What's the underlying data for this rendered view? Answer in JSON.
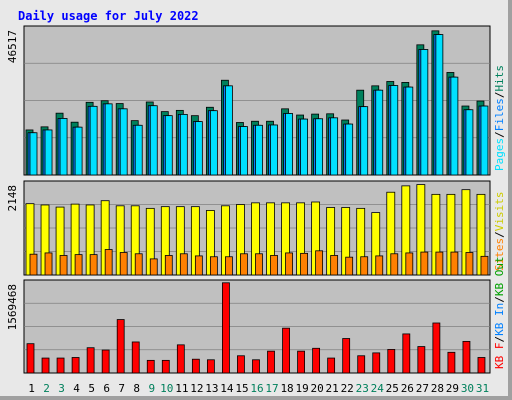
{
  "chart_data": [
    {
      "type": "bar",
      "title": "Daily usage for July 2022",
      "panel": "hits-files-pages",
      "max_label": "46517",
      "ylim": [
        0,
        46517
      ],
      "categories": [
        "1",
        "2",
        "3",
        "4",
        "5",
        "6",
        "7",
        "8",
        "9",
        "10",
        "11",
        "12",
        "13",
        "14",
        "15",
        "16",
        "17",
        "18",
        "19",
        "20",
        "21",
        "22",
        "23",
        "24",
        "25",
        "26",
        "27",
        "28",
        "29",
        "30",
        "31"
      ],
      "weekend_days": [
        "2",
        "3",
        "9",
        "10",
        "16",
        "17",
        "23",
        "24",
        "30",
        "31"
      ],
      "side_label": [
        "Pages",
        "Files",
        "Hits"
      ],
      "series": [
        {
          "name": "Hits",
          "color": "#00805c",
          "values": [
            14500,
            15500,
            19900,
            17000,
            23400,
            23900,
            23000,
            17500,
            23500,
            20400,
            20800,
            19100,
            21800,
            30500,
            16900,
            17300,
            17300,
            21300,
            19300,
            19600,
            19700,
            17700,
            27300,
            28700,
            30100,
            29800,
            41900,
            46400,
            33000,
            22200,
            23800
          ]
        },
        {
          "name": "Files",
          "color": "#0080ff",
          "values": [
            13600,
            14500,
            18200,
            15400,
            22100,
            22900,
            21300,
            16000,
            22300,
            19100,
            19500,
            17200,
            20700,
            28700,
            15600,
            16000,
            16100,
            19800,
            18000,
            18100,
            18400,
            16400,
            22000,
            27300,
            28800,
            28300,
            40400,
            45200,
            31500,
            21000,
            22200
          ]
        },
        {
          "name": "Pages",
          "color": "#00e0ff",
          "values": [
            13600,
            14500,
            18200,
            15400,
            22100,
            22900,
            21300,
            16000,
            22300,
            19100,
            19500,
            17200,
            20700,
            28700,
            15600,
            16000,
            16100,
            19800,
            18000,
            18100,
            18400,
            16400,
            22000,
            27300,
            28800,
            28300,
            40400,
            45200,
            31500,
            21000,
            22200
          ]
        }
      ]
    },
    {
      "type": "bar",
      "panel": "visits-sites",
      "max_label": "2148",
      "ylim": [
        0,
        2148
      ],
      "side_label": [
        "Sites",
        "Visits"
      ],
      "series": [
        {
          "name": "Visits",
          "color": "#ffff00",
          "values": [
            1680,
            1650,
            1600,
            1670,
            1650,
            1750,
            1630,
            1630,
            1570,
            1610,
            1610,
            1610,
            1520,
            1630,
            1660,
            1700,
            1700,
            1700,
            1700,
            1720,
            1590,
            1590,
            1570,
            1470,
            1950,
            2100,
            2130,
            1900,
            1900,
            2010,
            1900
          ]
        },
        {
          "name": "Sites",
          "color": "#ff8000",
          "values": [
            490,
            520,
            460,
            480,
            480,
            600,
            530,
            500,
            380,
            460,
            500,
            450,
            430,
            430,
            500,
            500,
            460,
            520,
            510,
            570,
            460,
            420,
            430,
            450,
            500,
            520,
            540,
            540,
            540,
            530,
            440
          ]
        }
      ]
    },
    {
      "type": "bar",
      "panel": "kbytes",
      "max_label": "1569468",
      "ylim": [
        0,
        1569468
      ],
      "side_label": [
        "KB F",
        "KB In",
        "KB Out"
      ],
      "series": [
        {
          "name": "KB F",
          "color": "#ff0000",
          "values": [
            510000,
            260000,
            260000,
            270000,
            440000,
            400000,
            930000,
            540000,
            220000,
            220000,
            490000,
            240000,
            230000,
            1569468,
            300000,
            230000,
            380000,
            780000,
            380000,
            430000,
            260000,
            600000,
            300000,
            350000,
            410000,
            680000,
            460000,
            870000,
            360000,
            550000,
            270000
          ]
        }
      ]
    }
  ]
}
